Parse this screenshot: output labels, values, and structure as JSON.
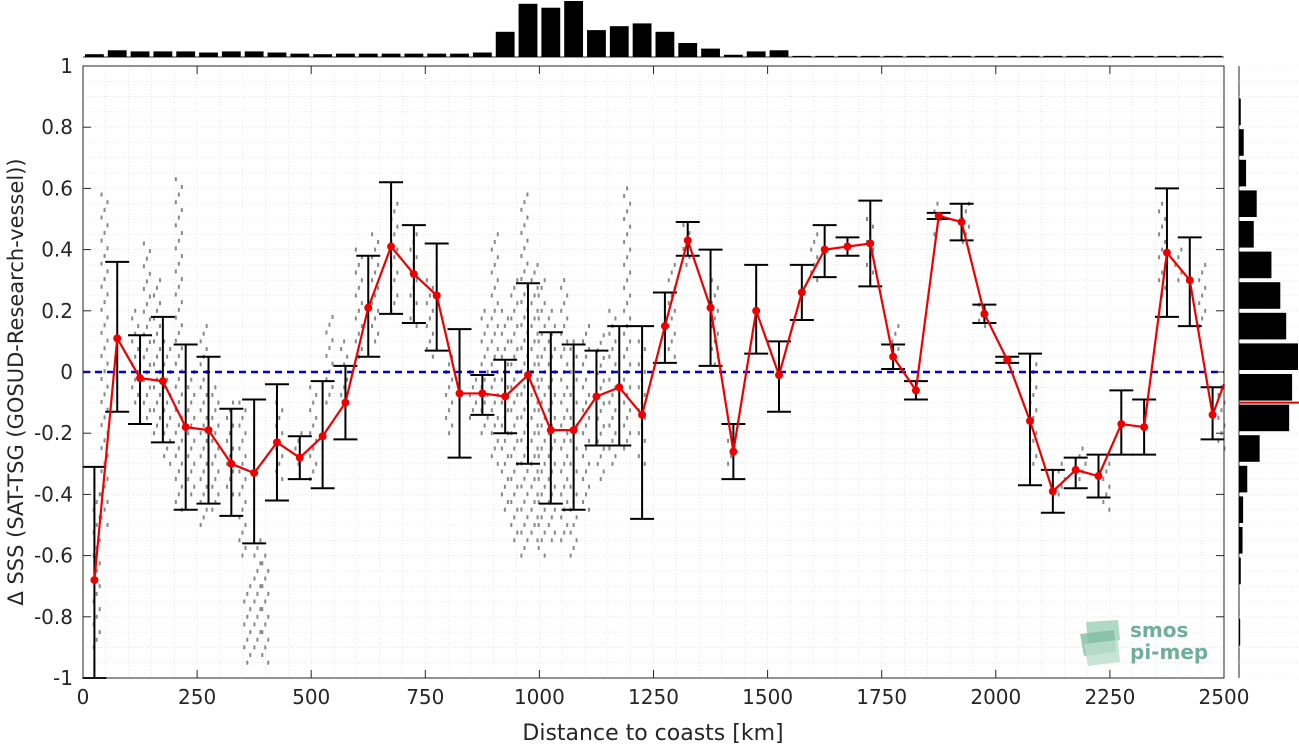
{
  "chart_data": {
    "type": "line",
    "xlabel": "Distance to coasts [km]",
    "ylabel": "Δ SSS (SAT-TSG (GOSUD-Research-vessel))",
    "xlim": [
      0,
      2500
    ],
    "ylim": [
      -1,
      1
    ],
    "x_ticks": [
      "0",
      "250",
      "500",
      "750",
      "1000",
      "1250",
      "1500",
      "1750",
      "2000",
      "2250",
      "2500"
    ],
    "y_ticks": [
      "-1",
      "-0.8",
      "-0.6",
      "-0.4",
      "-0.2",
      "0",
      "0.2",
      "0.4",
      "0.6",
      "0.8",
      "1"
    ],
    "grid": true,
    "zero_line": {
      "y": 0,
      "color": "#0000dd",
      "style": "dashed"
    },
    "series": [
      {
        "color": "#ee0000",
        "x": [
          25,
          75,
          125,
          175,
          225,
          275,
          325,
          375,
          425,
          475,
          525,
          575,
          625,
          675,
          725,
          775,
          825,
          875,
          925,
          975,
          1025,
          1075,
          1125,
          1175,
          1225,
          1275,
          1325,
          1375,
          1425,
          1475,
          1525,
          1575,
          1625,
          1675,
          1725,
          1775,
          1825,
          1875,
          1925,
          1975,
          2025,
          2075,
          2125,
          2175,
          2225,
          2275,
          2325,
          2375,
          2425,
          2475
        ],
        "y": [
          -0.68,
          0.11,
          -0.02,
          -0.03,
          -0.18,
          -0.19,
          -0.3,
          -0.33,
          -0.23,
          -0.28,
          -0.21,
          -0.1,
          0.21,
          0.41,
          0.32,
          0.25,
          -0.07,
          -0.07,
          -0.08,
          -0.01,
          -0.19,
          -0.19,
          -0.08,
          -0.05,
          -0.14,
          0.15,
          0.43,
          0.21,
          -0.26,
          0.2,
          -0.01,
          0.26,
          0.4,
          0.41,
          0.42,
          0.05,
          -0.06,
          0.51,
          0.49,
          0.19,
          0.04,
          -0.16,
          -0.39,
          -0.32,
          -0.34,
          -0.17,
          -0.18,
          0.39,
          0.3,
          -0.14
        ],
        "err_low": [
          -1.0,
          -0.13,
          -0.17,
          -0.23,
          -0.45,
          -0.43,
          -0.47,
          -0.56,
          -0.42,
          -0.35,
          -0.38,
          -0.22,
          0.05,
          0.19,
          0.16,
          0.07,
          -0.28,
          -0.14,
          -0.2,
          -0.3,
          -0.43,
          -0.45,
          -0.24,
          -0.24,
          -0.48,
          0.03,
          0.38,
          0.02,
          -0.35,
          0.06,
          -0.13,
          0.17,
          0.31,
          0.38,
          0.28,
          0.01,
          -0.09,
          0.5,
          0.43,
          0.16,
          0.03,
          -0.37,
          -0.46,
          -0.38,
          -0.41,
          -0.27,
          -0.27,
          0.18,
          0.15,
          -0.22
        ],
        "err_high": [
          -0.31,
          0.36,
          0.12,
          0.18,
          0.09,
          0.05,
          -0.12,
          -0.09,
          -0.04,
          -0.21,
          -0.03,
          0.02,
          0.38,
          0.62,
          0.48,
          0.42,
          0.14,
          -0.01,
          0.04,
          0.29,
          0.13,
          0.09,
          0.07,
          0.15,
          0.15,
          0.26,
          0.49,
          0.4,
          -0.17,
          0.35,
          0.1,
          0.35,
          0.48,
          0.44,
          0.56,
          0.09,
          -0.03,
          0.52,
          0.55,
          0.22,
          0.05,
          0.06,
          -0.32,
          -0.28,
          -0.27,
          -0.06,
          -0.09,
          0.6,
          0.44,
          -0.05
        ]
      }
    ],
    "scatter_columns": [
      {
        "x": 30,
        "ymin": -0.9,
        "ymax": -0.4
      },
      {
        "x": 45,
        "ymin": -0.5,
        "ymax": 0.58
      },
      {
        "x": 110,
        "ymin": -0.1,
        "ymax": 0.2
      },
      {
        "x": 140,
        "ymin": -0.15,
        "ymax": 0.42
      },
      {
        "x": 160,
        "ymin": -0.2,
        "ymax": 0.3
      },
      {
        "x": 180,
        "ymin": -0.3,
        "ymax": 0.1
      },
      {
        "x": 210,
        "ymin": -0.45,
        "ymax": 0.63
      },
      {
        "x": 235,
        "ymin": -0.4,
        "ymax": 0.0
      },
      {
        "x": 260,
        "ymin": -0.5,
        "ymax": 0.15
      },
      {
        "x": 290,
        "ymin": -0.45,
        "ymax": -0.05
      },
      {
        "x": 320,
        "ymin": -0.4,
        "ymax": -0.1
      },
      {
        "x": 345,
        "ymin": -0.6,
        "ymax": -0.1
      },
      {
        "x": 360,
        "ymin": -0.95,
        "ymax": -0.7
      },
      {
        "x": 380,
        "ymin": -0.9,
        "ymax": -0.55
      },
      {
        "x": 395,
        "ymin": -0.95,
        "ymax": -0.6
      },
      {
        "x": 430,
        "ymin": -0.35,
        "ymax": -0.1
      },
      {
        "x": 470,
        "ymin": -0.3,
        "ymax": -0.2
      },
      {
        "x": 500,
        "ymin": -0.35,
        "ymax": -0.05
      },
      {
        "x": 540,
        "ymin": -0.1,
        "ymax": 0.18
      },
      {
        "x": 570,
        "ymin": -0.1,
        "ymax": 0.1
      },
      {
        "x": 600,
        "ymin": 0.05,
        "ymax": 0.4
      },
      {
        "x": 640,
        "ymin": 0.1,
        "ymax": 0.45
      },
      {
        "x": 680,
        "ymin": 0.2,
        "ymax": 0.55
      },
      {
        "x": 720,
        "ymin": 0.15,
        "ymax": 0.45
      },
      {
        "x": 760,
        "ymin": 0.05,
        "ymax": 0.3
      },
      {
        "x": 800,
        "ymin": -0.2,
        "ymax": 0.05
      },
      {
        "x": 850,
        "ymin": -0.15,
        "ymax": 0.0
      },
      {
        "x": 880,
        "ymin": -0.2,
        "ymax": 0.2
      },
      {
        "x": 900,
        "ymin": -0.3,
        "ymax": 0.45
      },
      {
        "x": 920,
        "ymin": -0.45,
        "ymax": 0.2
      },
      {
        "x": 945,
        "ymin": -0.55,
        "ymax": 0.3
      },
      {
        "x": 965,
        "ymin": -0.6,
        "ymax": 0.58
      },
      {
        "x": 985,
        "ymin": -0.55,
        "ymax": 0.35
      },
      {
        "x": 1005,
        "ymin": -0.6,
        "ymax": 0.3
      },
      {
        "x": 1025,
        "ymin": -0.55,
        "ymax": 0.2
      },
      {
        "x": 1050,
        "ymin": -0.55,
        "ymax": 0.3
      },
      {
        "x": 1075,
        "ymin": -0.6,
        "ymax": 0.1
      },
      {
        "x": 1100,
        "ymin": -0.45,
        "ymax": 0.15
      },
      {
        "x": 1130,
        "ymin": -0.35,
        "ymax": 0.12
      },
      {
        "x": 1160,
        "ymin": -0.3,
        "ymax": 0.2
      },
      {
        "x": 1190,
        "ymin": -0.25,
        "ymax": 0.6
      },
      {
        "x": 1220,
        "ymin": -0.3,
        "ymax": 0.1
      },
      {
        "x": 1290,
        "ymin": 0.05,
        "ymax": 0.35
      },
      {
        "x": 1320,
        "ymin": 0.35,
        "ymax": 0.48
      },
      {
        "x": 1380,
        "ymin": 0.0,
        "ymax": 0.3
      },
      {
        "x": 1420,
        "ymin": -0.3,
        "ymax": -0.2
      },
      {
        "x": 1600,
        "ymin": 0.3,
        "ymax": 0.45
      },
      {
        "x": 1720,
        "ymin": 0.3,
        "ymax": 0.5
      },
      {
        "x": 1780,
        "ymin": 0.05,
        "ymax": 0.15
      },
      {
        "x": 1870,
        "ymin": 0.45,
        "ymax": 0.55
      },
      {
        "x": 1930,
        "ymin": 0.4,
        "ymax": 0.55
      },
      {
        "x": 1970,
        "ymin": 0.15,
        "ymax": 0.22
      },
      {
        "x": 2080,
        "ymin": -0.3,
        "ymax": 0.05
      },
      {
        "x": 2140,
        "ymin": -0.4,
        "ymax": -0.3
      },
      {
        "x": 2190,
        "ymin": -0.35,
        "ymax": -0.25
      },
      {
        "x": 2240,
        "ymin": -0.45,
        "ymax": -0.3
      },
      {
        "x": 2360,
        "ymin": 0.25,
        "ymax": 0.55
      },
      {
        "x": 2400,
        "ymin": 0.3,
        "ymax": 0.4
      },
      {
        "x": 2450,
        "ymin": 0.15,
        "ymax": 0.35
      },
      {
        "x": 2490,
        "ymin": -0.25,
        "ymax": -0.05
      }
    ],
    "top_histogram": {
      "bin_edges_start": 0,
      "bin_width": 50,
      "counts": [
        0.05,
        0.12,
        0.1,
        0.1,
        0.1,
        0.08,
        0.1,
        0.1,
        0.08,
        0.06,
        0.05,
        0.06,
        0.06,
        0.06,
        0.06,
        0.06,
        0.06,
        0.08,
        0.45,
        0.95,
        0.88,
        1.0,
        0.48,
        0.55,
        0.6,
        0.45,
        0.25,
        0.15,
        0.04,
        0.1,
        0.12,
        0.02,
        0.02,
        0.02,
        0.02,
        0.02,
        0.02,
        0.02,
        0.02,
        0.02,
        0.02,
        0.02,
        0.02,
        0.02,
        0.02,
        0.02,
        0.02,
        0.02,
        0.02,
        0.02
      ]
    },
    "side_histogram": {
      "bin_edges_start": -1,
      "bin_width": 0.1,
      "counts": [
        0.0,
        0.02,
        0.0,
        0.03,
        0.06,
        0.07,
        0.14,
        0.35,
        0.85,
        0.9,
        1.0,
        0.8,
        0.7,
        0.55,
        0.25,
        0.3,
        0.12,
        0.08,
        0.03,
        0.0
      ],
      "mean_line": {
        "y": -0.1,
        "color": "#dd0000"
      }
    },
    "colors": {
      "scatter": "#888888",
      "errorbar": "#000000",
      "grid": "#d9d9d9",
      "axis": "#262626"
    }
  },
  "logo": {
    "line1": "smos",
    "line2": "pi-mep"
  }
}
